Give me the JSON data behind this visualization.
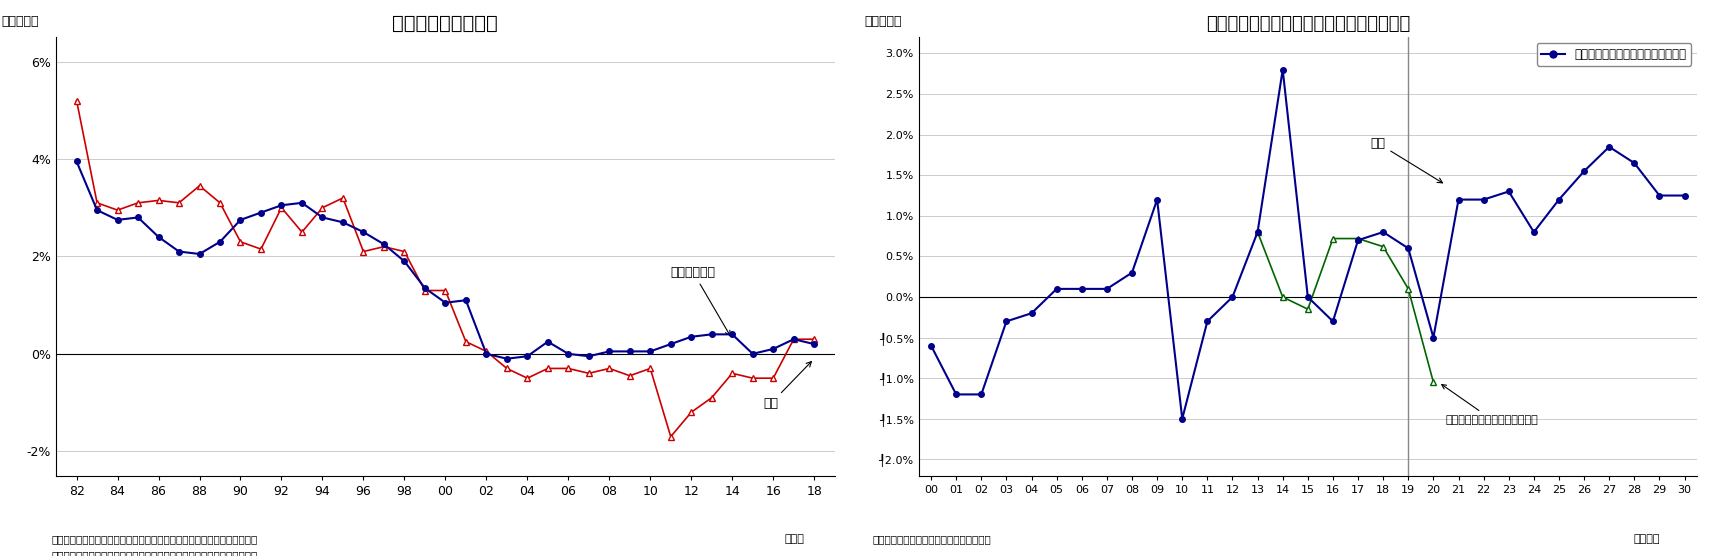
{
  "chart1": {
    "title": "サービス価格と賃金",
    "ylabel": "（前年比）",
    "xlabel": "（年）",
    "note1": "（注）賃金は一人当たり所定内給与。サービス価格は消費税の影響を除く",
    "note2": "（資料）総務省統計局「消費者物価指数」、厚生労働省「毎月勤労統計」",
    "sp_years": [
      82,
      83,
      84,
      85,
      86,
      87,
      88,
      89,
      90,
      91,
      92,
      93,
      94,
      95,
      96,
      97,
      98,
      99,
      100,
      101,
      102,
      103,
      104,
      105,
      106,
      107,
      108,
      109,
      110,
      111,
      112,
      113,
      114,
      115,
      116,
      117,
      118
    ],
    "sp_values": [
      3.95,
      2.95,
      2.75,
      2.8,
      2.4,
      2.1,
      2.05,
      2.3,
      2.75,
      2.9,
      3.05,
      3.1,
      2.8,
      2.7,
      2.5,
      2.25,
      1.9,
      1.35,
      1.05,
      1.1,
      0.0,
      -0.1,
      -0.05,
      0.25,
      0.0,
      -0.05,
      0.05,
      0.05,
      0.05,
      0.2,
      0.35,
      0.4,
      0.4,
      0.0,
      0.1,
      0.3,
      0.2
    ],
    "wg_years": [
      82,
      83,
      84,
      85,
      86,
      87,
      88,
      89,
      90,
      91,
      92,
      93,
      94,
      95,
      96,
      97,
      98,
      99,
      100,
      101,
      102,
      103,
      104,
      105,
      106,
      107,
      108,
      109,
      110,
      111,
      112,
      113,
      114,
      115,
      116,
      117,
      118
    ],
    "wg_values": [
      5.2,
      3.1,
      2.95,
      3.1,
      3.15,
      3.1,
      3.45,
      3.1,
      2.3,
      2.15,
      3.0,
      2.5,
      3.0,
      3.2,
      2.1,
      2.2,
      2.1,
      1.3,
      1.3,
      0.25,
      0.05,
      -0.3,
      -0.5,
      -0.3,
      -0.3,
      -0.4,
      -0.3,
      -0.45,
      -0.3,
      -1.7,
      -1.2,
      -0.9,
      -0.4,
      -0.5,
      -0.5,
      0.3,
      0.3
    ],
    "xtick_pos": [
      82,
      84,
      86,
      88,
      90,
      92,
      94,
      96,
      98,
      100,
      102,
      104,
      106,
      108,
      110,
      112,
      114,
      116,
      118
    ],
    "xtick_labels": [
      "82",
      "84",
      "86",
      "88",
      "90",
      "92",
      "94",
      "96",
      "98",
      "00",
      "02",
      "04",
      "06",
      "08",
      "10",
      "12",
      "14",
      "16",
      "18"
    ],
    "xlim": [
      81,
      119
    ],
    "ylim": [
      -2.5,
      6.5
    ],
    "yticks": [
      -2,
      0,
      2,
      4,
      6
    ],
    "ytick_labels": [
      "-2%",
      "0%",
      "2%",
      "4%",
      "6%"
    ],
    "label_service": "サービス価格",
    "label_wage": "賃金",
    "service_color": "#00008B",
    "wage_color": "#CC0000"
  },
  "chart2": {
    "title": "消費者物価（生鮮食品を除く総合）の予測",
    "ylabel": "（前年比）",
    "xlabel": "（年度）",
    "note1": "（資料）総務省統計局「消費者物価指数」",
    "cpi_years": [
      0,
      1,
      2,
      3,
      4,
      5,
      6,
      7,
      8,
      9,
      10,
      11,
      12,
      13,
      14,
      15,
      16,
      17,
      18,
      19,
      20,
      21,
      22,
      23,
      24,
      25,
      26,
      27,
      28,
      29,
      30
    ],
    "cpi_values": [
      -0.6,
      -1.2,
      -1.2,
      -0.3,
      -0.2,
      0.1,
      0.1,
      0.1,
      0.3,
      1.2,
      -1.5,
      -0.3,
      0.0,
      0.8,
      2.8,
      0.0,
      -0.3,
      0.7,
      0.8,
      0.6,
      -0.5,
      1.2,
      1.2,
      1.3,
      0.8,
      1.2,
      1.55,
      1.85,
      1.65,
      1.25,
      1.25
    ],
    "ex_years": [
      13,
      14,
      15,
      16,
      17,
      18,
      19,
      20
    ],
    "ex_values": [
      0.8,
      0.0,
      -0.15,
      0.72,
      0.72,
      0.62,
      0.1,
      -1.05
    ],
    "xtick_labels": [
      "00",
      "01",
      "02",
      "03",
      "04",
      "05",
      "06",
      "07",
      "08",
      "09",
      "10",
      "11",
      "12",
      "13",
      "14",
      "15",
      "16",
      "17",
      "18",
      "19",
      "20",
      "21",
      "22",
      "23",
      "24",
      "25",
      "26",
      "27",
      "28",
      "29",
      "30"
    ],
    "xlim": [
      -0.5,
      30.5
    ],
    "ylim": [
      -2.2,
      3.2
    ],
    "yticks": [
      -2.0,
      -1.5,
      -1.0,
      -0.5,
      0.0,
      0.5,
      1.0,
      1.5,
      2.0,
      2.5,
      3.0
    ],
    "ytick_labels": [
      "┦2.0%",
      "┦1.5%",
      "┦1.0%",
      "┦0.5%",
      "0.0%",
      "0.5%",
      "1.0%",
      "1.5%",
      "2.0%",
      "2.5%",
      "3.0%"
    ],
    "forecast_start": 19,
    "cpi_color": "#00008B",
    "ex_color": "#006400",
    "legend_label": "消費者物価（生鮮食品を除く総合）",
    "label_yosoku": "予測",
    "label_ex_tax": "消費税率引き上げの影響を除く"
  }
}
